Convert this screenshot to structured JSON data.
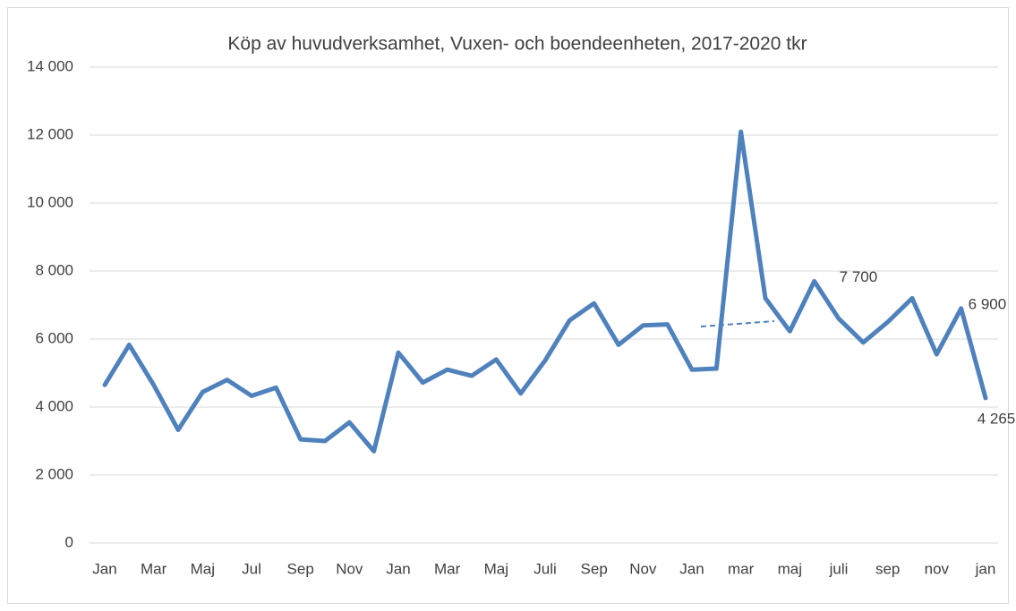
{
  "chart_data": {
    "type": "line",
    "title": "Köp av huvudverksamhet, Vuxen- och boendeenheten, 2017-2020 tkr",
    "categories": [
      "Jan",
      null,
      "Mar",
      null,
      "Maj",
      null,
      "Jul",
      null,
      "Sep",
      null,
      "Nov",
      null,
      "Jan",
      null,
      "Mar",
      null,
      "Maj",
      null,
      "Juli",
      null,
      "Sep",
      null,
      "Nov",
      null,
      "Jan",
      null,
      "mar",
      null,
      "maj",
      null,
      "juli",
      null,
      "sep",
      null,
      "nov",
      null,
      "jan"
    ],
    "series": [
      {
        "color": "#4f81bd",
        "values": [
          4650,
          5830,
          4650,
          3330,
          4440,
          4800,
          4330,
          4570,
          3050,
          3000,
          3550,
          2700,
          5600,
          4720,
          5100,
          4920,
          5400,
          4400,
          5370,
          6550,
          7050,
          5830,
          6400,
          6430,
          5100,
          5130,
          12100,
          7200,
          6230,
          7700,
          6600,
          5900,
          6500,
          7200,
          5550,
          6900,
          4265
        ],
        "value_labels": [
          null,
          null,
          null,
          null,
          null,
          null,
          null,
          null,
          null,
          null,
          null,
          null,
          null,
          null,
          null,
          null,
          null,
          null,
          null,
          null,
          null,
          null,
          null,
          null,
          null,
          null,
          null,
          null,
          null,
          "7 700",
          null,
          null,
          null,
          null,
          null,
          "6 900",
          "4 265"
        ]
      }
    ],
    "ylim": [
      0,
      14000
    ],
    "yticks": [
      0,
      {
        "value": 2000,
        "label": "2 000"
      },
      {
        "value": 4000,
        "label": "4 000"
      },
      {
        "value": 6000,
        "label": "6 000"
      },
      {
        "value": 8000,
        "label": "8 000"
      },
      {
        "value": 10000,
        "label": "10 000"
      },
      {
        "value": 12000,
        "label": "12 000"
      },
      {
        "value": 14000,
        "label": "14 000"
      }
    ],
    "grid": true
  }
}
